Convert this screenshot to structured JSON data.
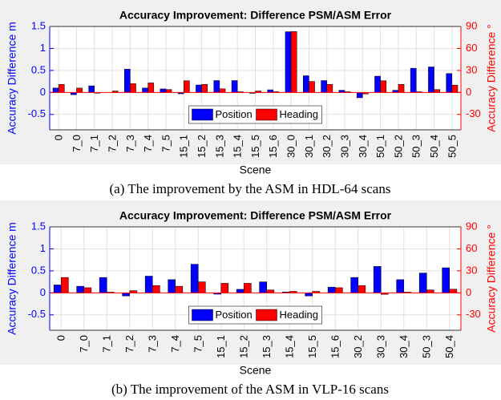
{
  "chart_data": [
    {
      "type": "bar",
      "title": "Accuracy Improvement: Difference PSM/ASM Error",
      "xlabel": "Scene",
      "ylabel": "Accuracy Difference m",
      "y2label": "Accuracy Difference °",
      "caption": "(a) The improvement by the ASM in HDL-64 scans",
      "categories": [
        "0",
        "7_0",
        "7_1",
        "7_2",
        "7_3",
        "7_4",
        "7_5",
        "15_1",
        "15_2",
        "15_3",
        "15_4",
        "15_5",
        "15_6",
        "30_0",
        "30_1",
        "30_2",
        "30_3",
        "30_4",
        "50_1",
        "50_2",
        "50_3",
        "50_4",
        "50_5"
      ],
      "series": [
        {
          "name": "Position",
          "color": "#0000ff",
          "values": [
            0.1,
            -0.05,
            0.15,
            0.0,
            0.53,
            0.1,
            0.08,
            -0.03,
            0.17,
            0.27,
            0.27,
            -0.02,
            0.06,
            1.38,
            0.38,
            0.27,
            0.05,
            -0.12,
            0.37,
            0.05,
            0.55,
            0.58,
            0.43
          ]
        },
        {
          "name": "Heading",
          "color": "#ff0000",
          "axis": "y2",
          "values": [
            11,
            6,
            -1,
            2,
            12,
            13,
            4,
            16,
            11,
            5,
            1,
            2,
            1,
            83,
            15,
            11,
            1,
            -2,
            16,
            11,
            1,
            4,
            10
          ]
        }
      ],
      "ylim": [
        -0.85,
        1.5
      ],
      "yticks": [
        -0.5,
        0,
        0.5,
        1,
        1.5
      ],
      "y2lim": [
        -51,
        90
      ],
      "y2ticks": [
        -30,
        0,
        30,
        60,
        90
      ],
      "grid": true,
      "legend": "south"
    },
    {
      "type": "bar",
      "title": "Accuracy Improvement: Difference PSM/ASM Error",
      "xlabel": "Scene",
      "ylabel": "Accuracy Difference m",
      "y2label": "Accuracy Difference °",
      "caption": "(b) The improvement of the ASM in VLP-16 scans",
      "categories": [
        "0",
        "7_0",
        "7_1",
        "7_2",
        "7_3",
        "7_4",
        "7_5",
        "15_1",
        "15_2",
        "15_3",
        "15_4",
        "15_5",
        "15_6",
        "30_2",
        "30_3",
        "30_4",
        "50_3",
        "50_4"
      ],
      "series": [
        {
          "name": "Position",
          "color": "#0000ff",
          "values": [
            0.18,
            0.15,
            0.35,
            -0.07,
            0.38,
            0.3,
            0.65,
            -0.03,
            0.08,
            0.25,
            0.02,
            -0.07,
            0.13,
            0.35,
            0.6,
            0.3,
            0.45,
            0.57
          ]
        },
        {
          "name": "Heading",
          "color": "#ff0000",
          "axis": "y2",
          "values": [
            21,
            7,
            1,
            3,
            10,
            9,
            15,
            13,
            13,
            4,
            2,
            2,
            7,
            10,
            -2,
            1,
            4,
            5
          ]
        }
      ],
      "ylim": [
        -0.85,
        1.5
      ],
      "yticks": [
        -0.5,
        0,
        0.5,
        1,
        1.5
      ],
      "y2lim": [
        -51,
        90
      ],
      "y2ticks": [
        -30,
        0,
        30,
        60,
        90
      ],
      "grid": true,
      "legend": "south"
    }
  ]
}
